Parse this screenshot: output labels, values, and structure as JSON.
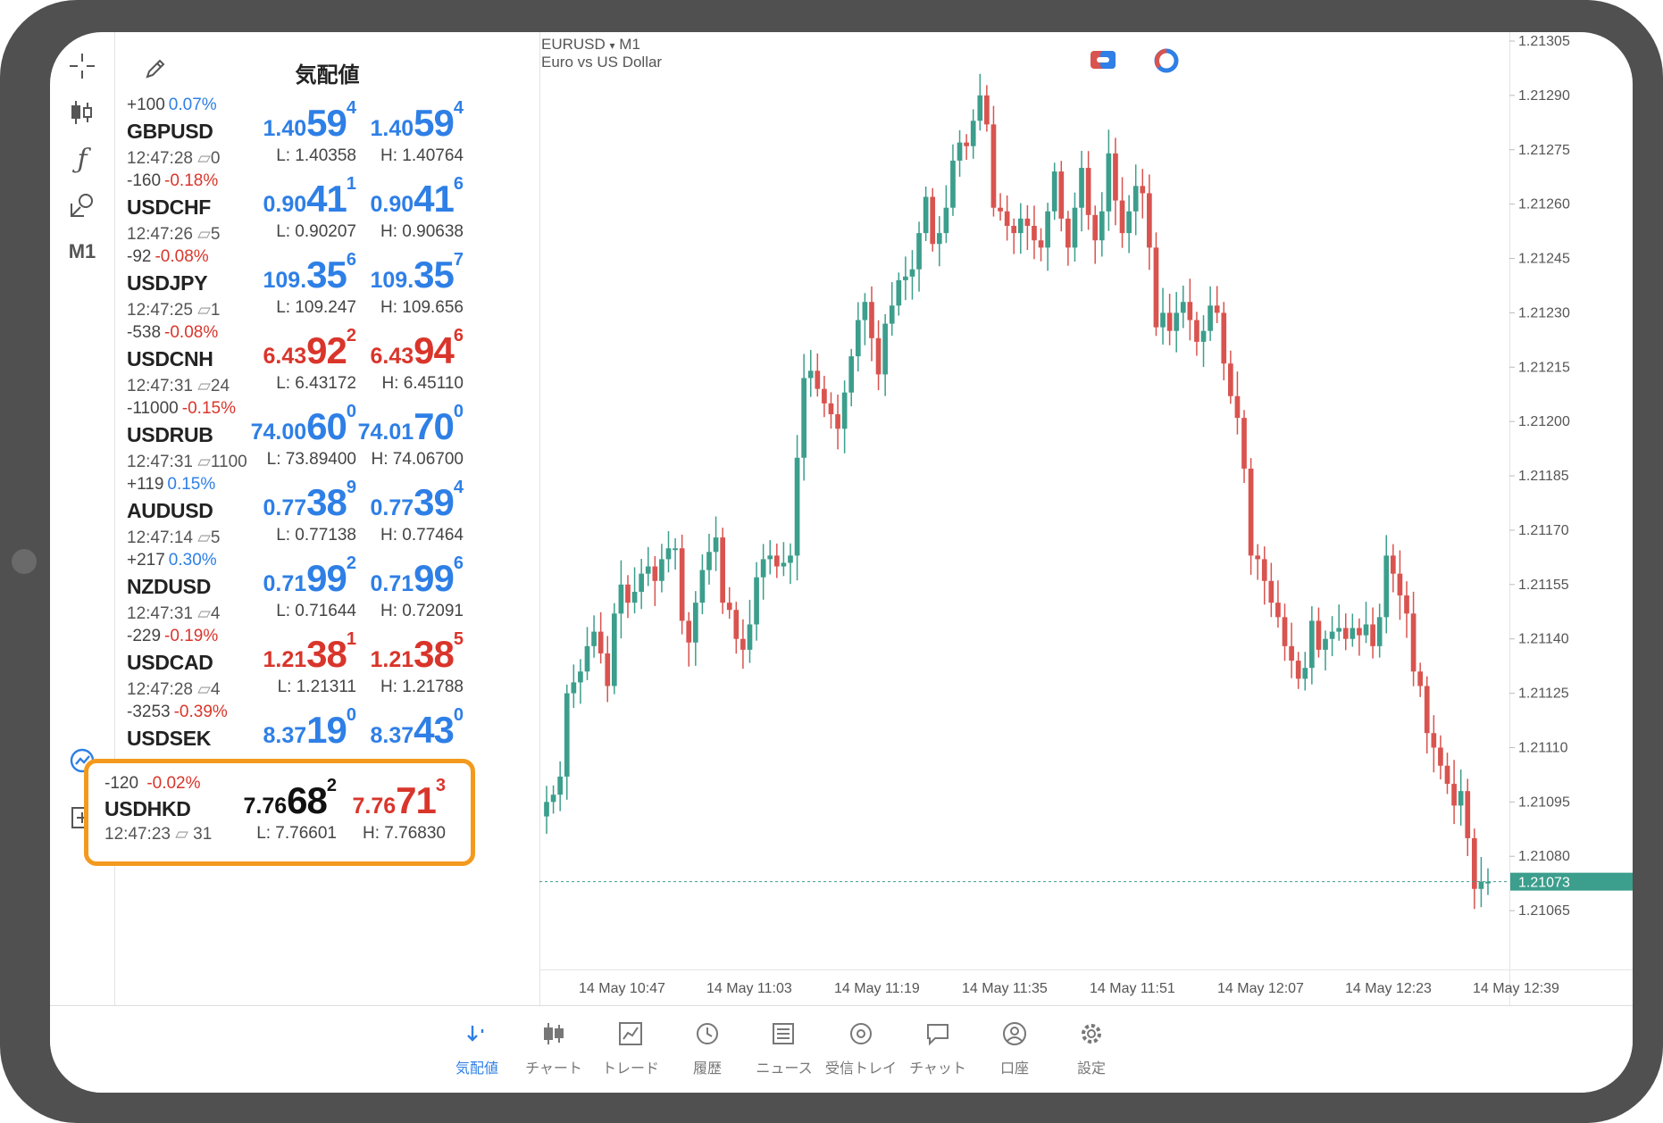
{
  "toolbar": {
    "items": [
      "crosshair-icon",
      "candles-icon",
      "indicator-icon",
      "objects-icon",
      "M1"
    ]
  },
  "quotes": {
    "title": "気配値",
    "rows": [
      {
        "chg": "+100",
        "pct": "0.07%",
        "dir": "up",
        "symbol": "GBPUSD",
        "time": "12:47:28",
        "spread": "0",
        "bid_small": "1.40",
        "bid_big": "59",
        "bid_sup": "4",
        "ask_small": "1.40",
        "ask_big": "59",
        "ask_sup": "4",
        "low": "L: 1.40358",
        "high": "H: 1.40764",
        "color": "blue"
      },
      {
        "chg": "-160",
        "pct": "-0.18%",
        "dir": "down",
        "symbol": "USDCHF",
        "time": "12:47:26",
        "spread": "5",
        "bid_small": "0.90",
        "bid_big": "41",
        "bid_sup": "1",
        "ask_small": "0.90",
        "ask_big": "41",
        "ask_sup": "6",
        "low": "L: 0.90207",
        "high": "H: 0.90638",
        "color": "blue"
      },
      {
        "chg": "-92",
        "pct": "-0.08%",
        "dir": "down",
        "symbol": "USDJPY",
        "time": "12:47:25",
        "spread": "1",
        "bid_small": "109.",
        "bid_big": "35",
        "bid_sup": "6",
        "ask_small": "109.",
        "ask_big": "35",
        "ask_sup": "7",
        "low": "L: 109.247",
        "high": "H: 109.656",
        "color": "blue"
      },
      {
        "chg": "-538",
        "pct": "-0.08%",
        "dir": "down",
        "symbol": "USDCNH",
        "time": "12:47:31",
        "spread": "24",
        "bid_small": "6.43",
        "bid_big": "92",
        "bid_sup": "2",
        "ask_small": "6.43",
        "ask_big": "94",
        "ask_sup": "6",
        "low": "L: 6.43172",
        "high": "H: 6.45110",
        "color": "red"
      },
      {
        "chg": "-11000",
        "pct": "-0.15%",
        "dir": "down",
        "symbol": "USDRUB",
        "time": "12:47:31",
        "spread": "1100",
        "bid_small": "74.00",
        "bid_big": "60",
        "bid_sup": "0",
        "ask_small": "74.01",
        "ask_big": "70",
        "ask_sup": "0",
        "low": "L: 73.89400",
        "high": "H: 74.06700",
        "color": "blue"
      },
      {
        "chg": "+119",
        "pct": "0.15%",
        "dir": "up",
        "symbol": "AUDUSD",
        "time": "12:47:14",
        "spread": "5",
        "bid_small": "0.77",
        "bid_big": "38",
        "bid_sup": "9",
        "ask_small": "0.77",
        "ask_big": "39",
        "ask_sup": "4",
        "low": "L: 0.77138",
        "high": "H: 0.77464",
        "color": "blue"
      },
      {
        "chg": "+217",
        "pct": "0.30%",
        "dir": "up",
        "symbol": "NZDUSD",
        "time": "12:47:31",
        "spread": "4",
        "bid_small": "0.71",
        "bid_big": "99",
        "bid_sup": "2",
        "ask_small": "0.71",
        "ask_big": "99",
        "ask_sup": "6",
        "low": "L: 0.71644",
        "high": "H: 0.72091",
        "color": "blue"
      },
      {
        "chg": "-229",
        "pct": "-0.19%",
        "dir": "down",
        "symbol": "USDCAD",
        "time": "12:47:28",
        "spread": "4",
        "bid_small": "1.21",
        "bid_big": "38",
        "bid_sup": "1",
        "ask_small": "1.21",
        "ask_big": "38",
        "ask_sup": "5",
        "low": "L: 1.21311",
        "high": "H: 1.21788",
        "color": "red"
      },
      {
        "chg": "-3253",
        "pct": "-0.39%",
        "dir": "down",
        "symbol": "USDSEK",
        "time": "",
        "spread": "",
        "bid_small": "8.37",
        "bid_big": "19",
        "bid_sup": "0",
        "ask_small": "8.37",
        "ask_big": "43",
        "ask_sup": "0",
        "low": "",
        "high": "",
        "color": "blue"
      }
    ],
    "highlight": {
      "chg": "-120",
      "pct": "-0.02%",
      "symbol": "USDHKD",
      "time": "12:47:23",
      "spread": "31",
      "bid_small": "7.76",
      "bid_big": "68",
      "bid_sup": "2",
      "ask_small": "7.76",
      "ask_big": "71",
      "ask_sup": "3",
      "low": "L: 7.76601",
      "high": "H: 7.76830"
    }
  },
  "chart_header": {
    "symbol": "EURUSD",
    "timeframe": "M1",
    "desc": "Euro vs US Dollar",
    "arrow": "▾"
  },
  "chart_data": {
    "type": "candlestick",
    "symbol": "EURUSD",
    "ylim": [
      1.2105,
      1.21305
    ],
    "y_ticks": [
      "1.21305",
      "1.21290",
      "1.21275",
      "1.21260",
      "1.21245",
      "1.21230",
      "1.21215",
      "1.21200",
      "1.21185",
      "1.21170",
      "1.21155",
      "1.21140",
      "1.21125",
      "1.21110",
      "1.21095",
      "1.21080",
      "1.21065"
    ],
    "x_ticks": [
      "14 May 10:47",
      "14 May 11:03",
      "14 May 11:19",
      "14 May 11:35",
      "14 May 11:51",
      "14 May 12:07",
      "14 May 12:23",
      "14 May 12:39"
    ],
    "current_price": "1.21073",
    "up_color": "#3c9e8c",
    "down_color": "#d9534f",
    "closes": [
      1.21095,
      1.21097,
      1.21102,
      1.21125,
      1.21128,
      1.21131,
      1.21138,
      1.21142,
      1.21136,
      1.21127,
      1.21147,
      1.21155,
      1.2115,
      1.21153,
      1.21158,
      1.2116,
      1.21156,
      1.21162,
      1.21165,
      1.21165,
      1.21145,
      1.21139,
      1.2115,
      1.21159,
      1.21164,
      1.21168,
      1.2115,
      1.21148,
      1.2114,
      1.21137,
      1.21144,
      1.21157,
      1.21162,
      1.21163,
      1.2116,
      1.21161,
      1.21163,
      1.2119,
      1.21212,
      1.21214,
      1.21209,
      1.21205,
      1.21202,
      1.21198,
      1.21208,
      1.21218,
      1.21228,
      1.21233,
      1.21223,
      1.21213,
      1.21227,
      1.21232,
      1.21239,
      1.2124,
      1.21242,
      1.21252,
      1.21262,
      1.21249,
      1.21252,
      1.21259,
      1.21272,
      1.21277,
      1.21276,
      1.21283,
      1.2129,
      1.21282,
      1.21259,
      1.21258,
      1.21254,
      1.21252,
      1.21256,
      1.21254,
      1.2125,
      1.21248,
      1.21258,
      1.21269,
      1.21256,
      1.21248,
      1.21259,
      1.2127,
      1.21257,
      1.2125,
      1.21258,
      1.21274,
      1.21261,
      1.21252,
      1.21258,
      1.21265,
      1.21263,
      1.21248,
      1.21226,
      1.2123,
      1.21225,
      1.2123,
      1.21233,
      1.21228,
      1.21222,
      1.21225,
      1.21232,
      1.2123,
      1.21216,
      1.21207,
      1.21201,
      1.21187,
      1.21163,
      1.21162,
      1.21156,
      1.2115,
      1.21146,
      1.21138,
      1.21134,
      1.21129,
      1.21132,
      1.21145,
      1.21137,
      1.2114,
      1.21142,
      1.21143,
      1.2114,
      1.21143,
      1.21141,
      1.21144,
      1.21138,
      1.21146,
      1.21163,
      1.21158,
      1.21152,
      1.21147,
      1.21131,
      1.21127,
      1.21114,
      1.2111,
      1.21105,
      1.211,
      1.21094,
      1.21098,
      1.21085,
      1.21071,
      1.21073,
      1.21073
    ]
  },
  "bottom_nav": [
    {
      "label": "気配値",
      "icon": "quotes-icon",
      "active": true
    },
    {
      "label": "チャート",
      "icon": "chart-icon",
      "active": false
    },
    {
      "label": "トレード",
      "icon": "trade-icon",
      "active": false
    },
    {
      "label": "履歴",
      "icon": "history-icon",
      "active": false
    },
    {
      "label": "ニュース",
      "icon": "news-icon",
      "active": false
    },
    {
      "label": "受信トレイ",
      "icon": "mail-icon",
      "active": false
    },
    {
      "label": "チャット",
      "icon": "chat-icon",
      "active": false
    },
    {
      "label": "口座",
      "icon": "account-icon",
      "active": false
    },
    {
      "label": "設定",
      "icon": "settings-icon",
      "active": false
    }
  ]
}
